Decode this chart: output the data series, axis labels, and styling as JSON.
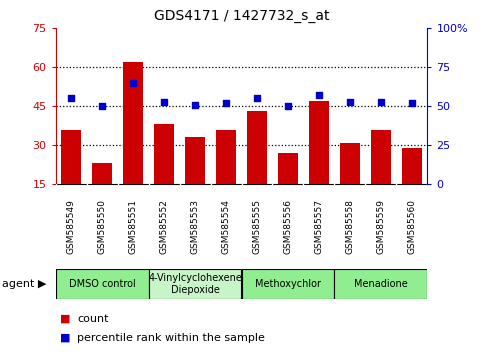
{
  "title": "GDS4171 / 1427732_s_at",
  "samples": [
    "GSM585549",
    "GSM585550",
    "GSM585551",
    "GSM585552",
    "GSM585553",
    "GSM585554",
    "GSM585555",
    "GSM585556",
    "GSM585557",
    "GSM585558",
    "GSM585559",
    "GSM585560"
  ],
  "counts": [
    36,
    23,
    62,
    38,
    33,
    36,
    43,
    27,
    47,
    31,
    36,
    29
  ],
  "percentiles": [
    55,
    50,
    65,
    53,
    51,
    52,
    55,
    50,
    57,
    53,
    53,
    52
  ],
  "bar_color": "#cc0000",
  "dot_color": "#0000cc",
  "ylim_left": [
    15,
    75
  ],
  "ylim_right": [
    0,
    100
  ],
  "yticks_left": [
    15,
    30,
    45,
    60,
    75
  ],
  "yticks_right": [
    0,
    25,
    50,
    75,
    100
  ],
  "ytick_labels_right": [
    "0",
    "25",
    "50",
    "75",
    "100%"
  ],
  "hlines": [
    30,
    45,
    60
  ],
  "agents": [
    {
      "label": "DMSO control",
      "start": 0,
      "end": 3,
      "color": "#90ee90"
    },
    {
      "label": "4-Vinylcyclohexene\nDiepoxide",
      "start": 3,
      "end": 6,
      "color": "#c8f5c8"
    },
    {
      "label": "Methoxychlor",
      "start": 6,
      "end": 9,
      "color": "#90ee90"
    },
    {
      "label": "Menadione",
      "start": 9,
      "end": 12,
      "color": "#90ee90"
    }
  ],
  "legend_count_label": "count",
  "legend_pct_label": "percentile rank within the sample",
  "agent_label": "agent",
  "sample_bg_color": "#d8d8d8",
  "plot_bg_color": "#ffffff"
}
